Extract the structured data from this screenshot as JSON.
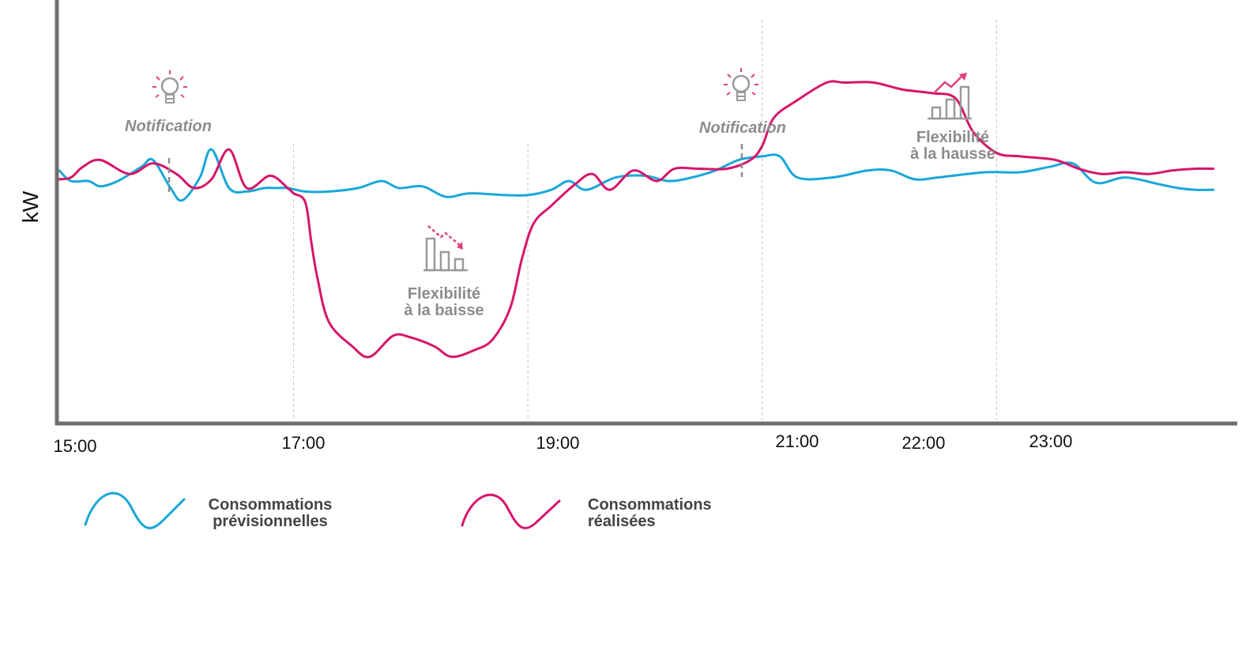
{
  "chart_data": {
    "type": "line",
    "title": "",
    "xlabel": "",
    "ylabel": "kW",
    "x_ticks": [
      "15:00",
      "17:00",
      "19:00",
      "21:00",
      "22:00",
      "23:00"
    ],
    "x_tick_hours": [
      15,
      17,
      19,
      21,
      22,
      23
    ],
    "xlim": [
      15,
      25
    ],
    "ylim": [
      0,
      10
    ],
    "grid": "vertical dashed lines at 17:00, 19:00, 21:00, 23:00",
    "legend_position": "bottom-left",
    "series": [
      {
        "name": "Consommations prévisionnelles",
        "color": "#1aa7d8",
        "points": [
          [
            15.0,
            6.5
          ],
          [
            15.1,
            6.2
          ],
          [
            15.25,
            6.2
          ],
          [
            15.35,
            6.05
          ],
          [
            15.5,
            6.2
          ],
          [
            15.7,
            6.6
          ],
          [
            15.8,
            6.8
          ],
          [
            15.95,
            6.0
          ],
          [
            16.05,
            5.65
          ],
          [
            16.2,
            6.3
          ],
          [
            16.3,
            7.1
          ],
          [
            16.45,
            6.0
          ],
          [
            16.6,
            5.9
          ],
          [
            16.75,
            6.0
          ],
          [
            16.85,
            6.0
          ],
          [
            16.95,
            6.0
          ],
          [
            17.1,
            5.9
          ],
          [
            17.3,
            5.9
          ],
          [
            17.55,
            6.0
          ],
          [
            17.75,
            6.2
          ],
          [
            17.9,
            6.0
          ],
          [
            18.1,
            6.05
          ],
          [
            18.3,
            5.75
          ],
          [
            18.5,
            5.85
          ],
          [
            18.8,
            5.8
          ],
          [
            19.0,
            5.8
          ],
          [
            19.2,
            5.95
          ],
          [
            19.35,
            6.2
          ],
          [
            19.5,
            5.95
          ],
          [
            19.75,
            6.3
          ],
          [
            20.0,
            6.35
          ],
          [
            20.2,
            6.2
          ],
          [
            20.4,
            6.3
          ],
          [
            20.6,
            6.5
          ],
          [
            20.8,
            6.8
          ],
          [
            21.0,
            6.9
          ],
          [
            21.15,
            6.9
          ],
          [
            21.3,
            6.3
          ],
          [
            21.6,
            6.3
          ],
          [
            21.9,
            6.5
          ],
          [
            22.1,
            6.5
          ],
          [
            22.3,
            6.25
          ],
          [
            22.5,
            6.3
          ],
          [
            22.9,
            6.45
          ],
          [
            23.2,
            6.45
          ],
          [
            23.45,
            6.6
          ],
          [
            23.65,
            6.7
          ],
          [
            23.85,
            6.15
          ],
          [
            24.1,
            6.3
          ],
          [
            24.4,
            6.1
          ],
          [
            24.55,
            6.0
          ],
          [
            24.7,
            5.95
          ],
          [
            24.85,
            5.95
          ]
        ]
      },
      {
        "name": "Consommations réalisées",
        "color": "#d6156b",
        "points": [
          [
            15.0,
            6.25
          ],
          [
            15.1,
            6.3
          ],
          [
            15.2,
            6.6
          ],
          [
            15.35,
            6.8
          ],
          [
            15.6,
            6.4
          ],
          [
            15.8,
            6.7
          ],
          [
            16.0,
            6.4
          ],
          [
            16.15,
            6.0
          ],
          [
            16.3,
            6.25
          ],
          [
            16.45,
            7.1
          ],
          [
            16.6,
            6.0
          ],
          [
            16.8,
            6.35
          ],
          [
            16.95,
            6.0
          ],
          [
            17.0,
            5.85
          ],
          [
            17.1,
            5.6
          ],
          [
            17.15,
            4.5
          ],
          [
            17.2,
            3.5
          ],
          [
            17.3,
            2.2
          ],
          [
            17.5,
            1.5
          ],
          [
            17.65,
            1.2
          ],
          [
            17.85,
            1.8
          ],
          [
            18.0,
            1.75
          ],
          [
            18.2,
            1.5
          ],
          [
            18.35,
            1.2
          ],
          [
            18.55,
            1.4
          ],
          [
            18.7,
            1.7
          ],
          [
            18.85,
            2.6
          ],
          [
            18.95,
            4.0
          ],
          [
            19.05,
            5.0
          ],
          [
            19.2,
            5.5
          ],
          [
            19.4,
            6.1
          ],
          [
            19.55,
            6.4
          ],
          [
            19.7,
            5.95
          ],
          [
            19.9,
            6.5
          ],
          [
            20.1,
            6.2
          ],
          [
            20.25,
            6.55
          ],
          [
            20.45,
            6.55
          ],
          [
            20.7,
            6.55
          ],
          [
            20.9,
            6.8
          ],
          [
            21.0,
            7.2
          ],
          [
            21.1,
            8.0
          ],
          [
            21.3,
            8.5
          ],
          [
            21.55,
            9.0
          ],
          [
            21.7,
            9.0
          ],
          [
            21.95,
            9.0
          ],
          [
            22.2,
            8.8
          ],
          [
            22.45,
            8.7
          ],
          [
            22.65,
            8.55
          ],
          [
            22.8,
            7.6
          ],
          [
            23.0,
            7.0
          ],
          [
            23.2,
            6.9
          ],
          [
            23.5,
            6.8
          ],
          [
            23.7,
            6.55
          ],
          [
            23.9,
            6.4
          ],
          [
            24.1,
            6.45
          ],
          [
            24.3,
            6.4
          ],
          [
            24.5,
            6.5
          ],
          [
            24.7,
            6.55
          ],
          [
            24.85,
            6.55
          ]
        ]
      }
    ],
    "annotations": [
      {
        "type": "notification",
        "label": "Notification",
        "x": 15.95
      },
      {
        "type": "flex-down",
        "label_line1": "Flexibilité",
        "label_line2": "à la baisse",
        "x_range": [
          17,
          19
        ]
      },
      {
        "type": "notification",
        "label": "Notification",
        "x": 20.55
      },
      {
        "type": "flex-up",
        "label_line1": "Flexibilité",
        "label_line2": "à la hausse",
        "x_range": [
          21,
          23
        ]
      }
    ]
  },
  "legend": [
    {
      "label_line1": "Consommations",
      "label_line2": "prévisionnelles",
      "color": "#1aa7d8",
      "icon": "wave-line-icon"
    },
    {
      "label_line1": "Consommations",
      "label_line2": "réalisées",
      "color": "#d6156b",
      "icon": "wave-line-icon"
    }
  ],
  "icons": {
    "notification": "lightbulb-icon",
    "flex_down": "bar-chart-decrease-icon",
    "flex_up": "bar-chart-increase-icon"
  }
}
